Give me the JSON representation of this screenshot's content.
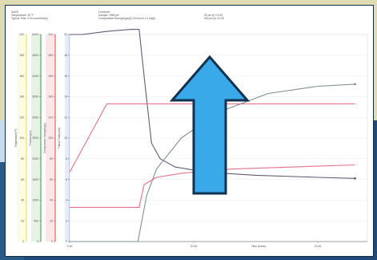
{
  "header": {
    "left": [
      "Sat2S",
      "Temperature: 25 °F",
      "Typical Time: 0.24 hours/unit(s)"
    ],
    "middle": [
      "Customer:",
      "Sample: 1998 psi",
      "Compressive Strength(psi)(0.25 hr/unit 1.0 days)"
    ],
    "right": [
      "50 psi @ 0:0:20",
      "500 psi @ 0:0:25"
    ]
  },
  "colors": {
    "arrow_fill": "#39a9ea",
    "arrow_stroke": "#11314f",
    "axis_yellow": "#e6e33a",
    "axis_green": "#3a9a3a",
    "axis_red": "#e24848",
    "axis_blue": "#3b6bd0",
    "trace_dark": "#5b5e76",
    "trace_pink": "#e8708a",
    "trace_gray": "#7f8f90"
  },
  "icons": [
    "up-arrow-icon"
  ],
  "chart_data": {
    "type": "line",
    "title": "",
    "xlabel": "Time (h:mm)",
    "x_ticks": [
      "0:00",
      "10:00",
      "20:00"
    ],
    "xlim": [
      0,
      24
    ],
    "y_axes": [
      {
        "name": "axis1",
        "label": "Temperature(°F)",
        "ticks": [
          "200",
          "180",
          "160",
          "140",
          "120",
          "100",
          "80",
          "60",
          "40",
          "20",
          "0"
        ]
      },
      {
        "name": "axis2",
        "label": "Pressure(psi)",
        "ticks": [
          "5000",
          "4500",
          "4000",
          "3500",
          "3000",
          "2500",
          "2000",
          "1500",
          "1000",
          "500",
          "0"
        ]
      },
      {
        "name": "axis3",
        "label": "Compressive Strength(psi)",
        "ticks": [
          "200",
          "180",
          "160",
          "140",
          "120",
          "100",
          "80",
          "60",
          "40",
          "20",
          "0"
        ]
      },
      {
        "name": "axis4",
        "label": "Transit Time(us/in)",
        "ticks": [
          "20",
          "18",
          "16",
          "14",
          "12",
          "10",
          "8",
          "6",
          "4",
          "2",
          "0"
        ]
      }
    ],
    "series": [
      {
        "name": "",
        "color": "#5b5e76",
        "x": [
          0,
          1,
          3,
          5,
          5.6,
          6,
          6.6,
          7.3,
          8.5,
          11,
          15,
          20,
          23
        ],
        "y": [
          200,
          200,
          203,
          205,
          205,
          160,
          95,
          80,
          72,
          67,
          64,
          62,
          61
        ]
      },
      {
        "name": "",
        "color": "#e8708a",
        "x": [
          0,
          3,
          23
        ],
        "y": [
          67,
          133,
          133
        ]
      },
      {
        "name": "",
        "color": "#7f8f90",
        "x": [
          0,
          5.5,
          6.2,
          7,
          9,
          12,
          16,
          20,
          23
        ],
        "y": [
          0,
          0,
          44,
          70,
          100,
          125,
          143,
          150,
          152
        ]
      },
      {
        "name": "",
        "color": "#e8708a",
        "x": [
          0,
          5.6,
          6,
          7,
          9,
          13,
          18,
          23
        ],
        "y": [
          33,
          33,
          55,
          62,
          66,
          70,
          72,
          74
        ]
      }
    ]
  }
}
